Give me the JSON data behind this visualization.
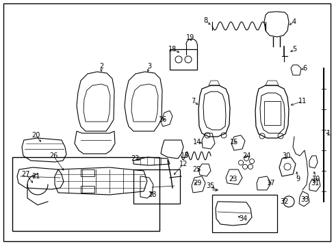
{
  "background_color": "#ffffff",
  "line_color": "#000000",
  "fig_width": 4.89,
  "fig_height": 3.6,
  "dpi": 100
}
